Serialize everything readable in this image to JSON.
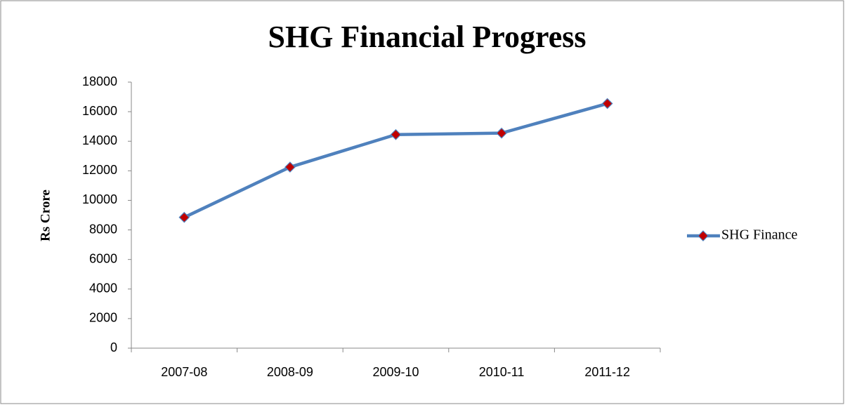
{
  "chart_data": {
    "type": "line",
    "title": "SHG Financial Progress",
    "y_label": "Rs Crore",
    "categories": [
      "2007-08",
      "2008-09",
      "2009-10",
      "2010-11",
      "2011-12"
    ],
    "series": [
      {
        "name": "SHG Finance",
        "color": "#4f81bd",
        "marker_color": "#c00000",
        "values": [
          8850,
          12250,
          14450,
          14550,
          16550
        ]
      }
    ],
    "ylim": [
      0,
      18000
    ],
    "yticks": [
      0,
      2000,
      4000,
      6000,
      8000,
      10000,
      12000,
      14000,
      16000,
      18000
    ],
    "grid": false,
    "legend": "right"
  }
}
